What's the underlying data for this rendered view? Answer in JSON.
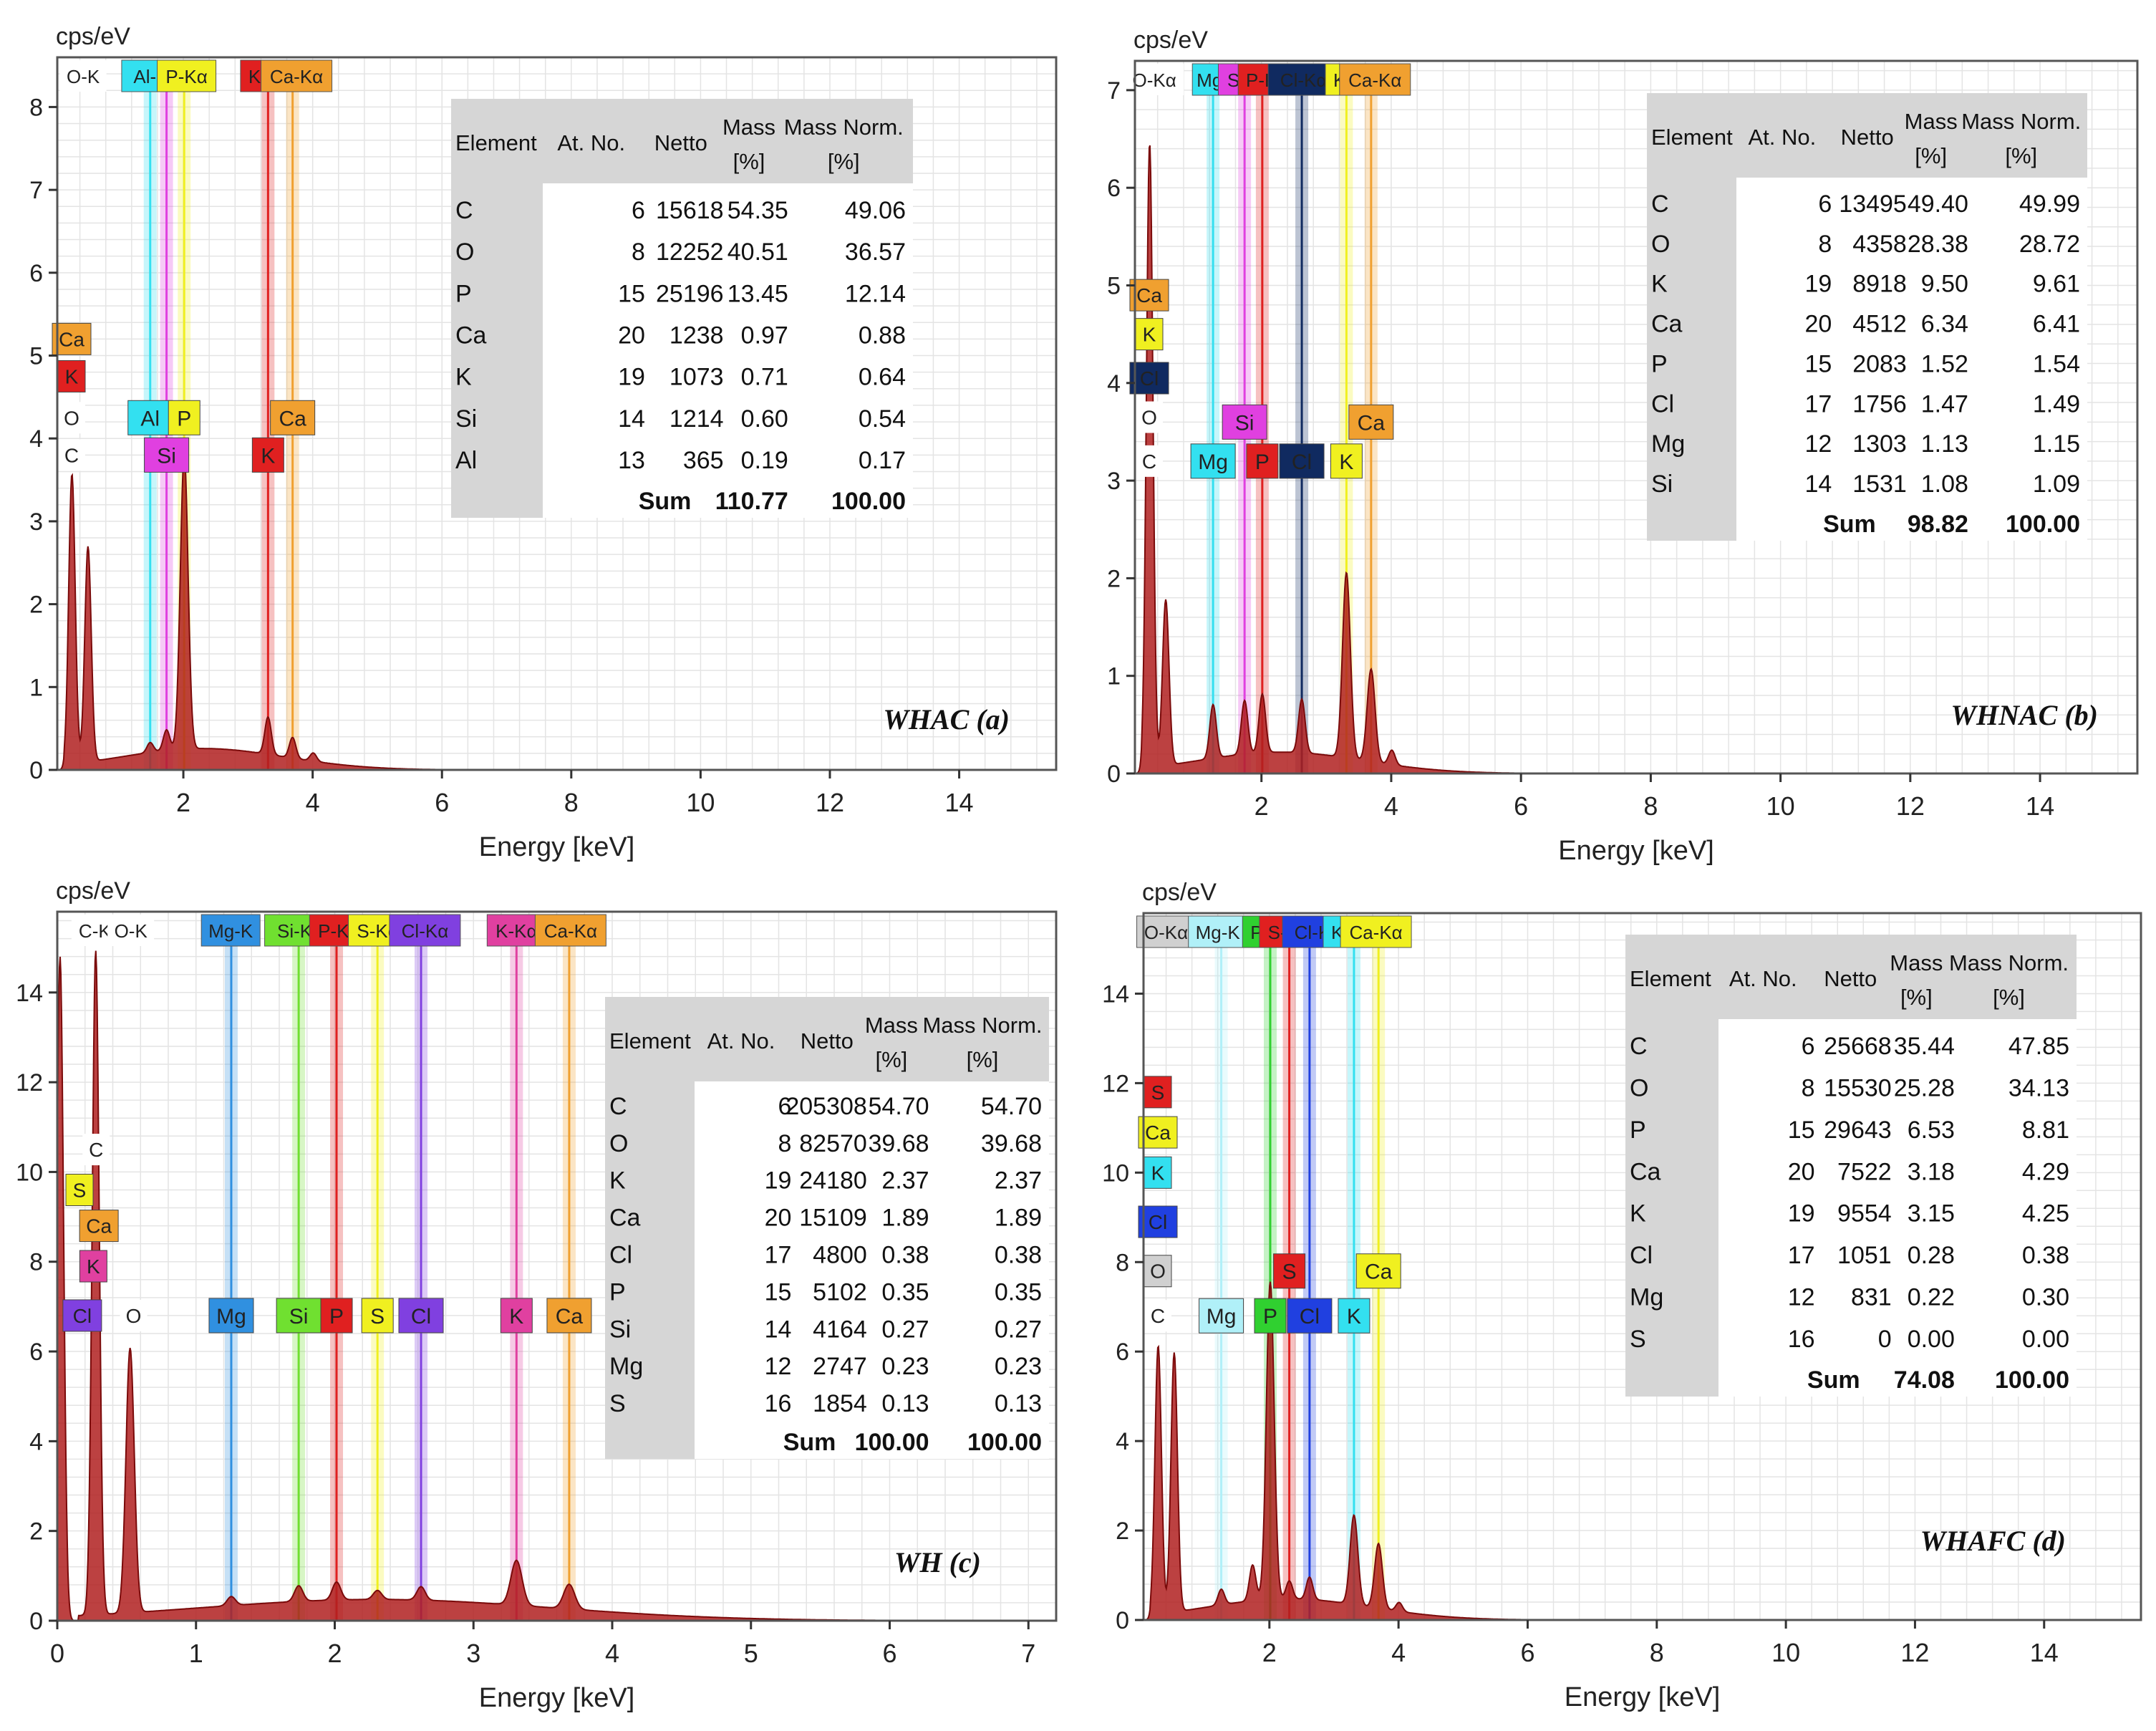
{
  "chart_data": [
    {
      "type": "line",
      "title": "WHAC (a)",
      "ylabel": "cps/eV",
      "xlabel": "Energy [keV]",
      "xlim": [
        0.05,
        15.5
      ],
      "ylim": [
        0,
        8.6
      ],
      "x_ticks": [
        2,
        4,
        6,
        8,
        10,
        12,
        14
      ],
      "y_ticks": [
        0,
        1,
        2,
        3,
        4,
        5,
        6,
        7,
        8
      ],
      "peaks": [
        {
          "x": 0.277,
          "h": 3.5,
          "w": 0.05
        },
        {
          "x": 0.525,
          "h": 2.6,
          "w": 0.05
        },
        {
          "x": 1.487,
          "h": 0.12,
          "w": 0.05
        },
        {
          "x": 1.74,
          "h": 0.25,
          "w": 0.05
        },
        {
          "x": 2.013,
          "h": 3.55,
          "w": 0.06
        },
        {
          "x": 3.31,
          "h": 0.45,
          "w": 0.05
        },
        {
          "x": 3.69,
          "h": 0.25,
          "w": 0.05
        },
        {
          "x": 4.01,
          "h": 0.1,
          "w": 0.05
        }
      ],
      "lines": [
        {
          "x": 1.487,
          "label": "Al",
          "color": "#33e0f0",
          "mark_y": 4.25
        },
        {
          "x": 1.74,
          "label": "Si",
          "color": "#e040e0",
          "mark_y": 3.8
        },
        {
          "x": 2.013,
          "label": "P",
          "color": "#f0f020",
          "mark_y": 4.25
        },
        {
          "x": 3.31,
          "label": "K",
          "color": "#e02020",
          "mark_y": 3.8
        },
        {
          "x": 3.69,
          "label": "Ca",
          "color": "#f0a030",
          "mark_y": 4.25
        }
      ],
      "side_labels": [
        {
          "label": "Ca",
          "y": 5.2,
          "color": "#f0a030"
        },
        {
          "label": "K",
          "y": 4.75,
          "color": "#e02020"
        },
        {
          "label": "O",
          "y": 4.25,
          "color": "#ffffff"
        },
        {
          "label": "C",
          "y": 3.8,
          "color": "#ffffff"
        }
      ],
      "top_labels": [
        {
          "x": 0.45,
          "label": "O-K",
          "color": "#ffffff"
        },
        {
          "x": 1.5,
          "label": "Al-K",
          "color": "#33e0f0"
        },
        {
          "x": 2.05,
          "label": "P-Kα",
          "color": "#f0f020"
        },
        {
          "x": 3.15,
          "label": "K-",
          "color": "#e02020"
        },
        {
          "x": 3.75,
          "label": "Ca-Kα",
          "color": "#f0a030"
        }
      ],
      "table": {
        "headers": [
          "Element",
          "At. No.",
          "Netto",
          "Mass [%]",
          "Mass Norm. [%]"
        ],
        "rows": [
          [
            "C",
            "6",
            "15618",
            "54.35",
            "49.06"
          ],
          [
            "O",
            "8",
            "12252",
            "40.51",
            "36.57"
          ],
          [
            "P",
            "15",
            "25196",
            "13.45",
            "12.14"
          ],
          [
            "Ca",
            "20",
            "1238",
            "0.97",
            "0.88"
          ],
          [
            "K",
            "19",
            "1073",
            "0.71",
            "0.64"
          ],
          [
            "Si",
            "14",
            "1214",
            "0.60",
            "0.54"
          ],
          [
            "Al",
            "13",
            "365",
            "0.19",
            "0.17"
          ]
        ],
        "sum_label": "Sum",
        "sum_mass": "110.77",
        "sum_norm": "100.00"
      }
    },
    {
      "type": "line",
      "title": "WHNAC (b)",
      "ylabel": "cps/eV",
      "xlabel": "Energy [keV]",
      "xlim": [
        0.05,
        15.5
      ],
      "ylim": [
        0,
        7.3
      ],
      "x_ticks": [
        2,
        4,
        6,
        8,
        10,
        12,
        14
      ],
      "y_ticks": [
        0,
        1,
        2,
        3,
        4,
        5,
        6,
        7
      ],
      "peaks": [
        {
          "x": 0.277,
          "h": 6.4,
          "w": 0.05
        },
        {
          "x": 0.525,
          "h": 1.7,
          "w": 0.05
        },
        {
          "x": 1.254,
          "h": 0.55,
          "w": 0.05
        },
        {
          "x": 1.74,
          "h": 0.55,
          "w": 0.05
        },
        {
          "x": 2.013,
          "h": 0.6,
          "w": 0.05
        },
        {
          "x": 2.622,
          "h": 0.55,
          "w": 0.05
        },
        {
          "x": 3.31,
          "h": 1.9,
          "w": 0.06
        },
        {
          "x": 3.69,
          "h": 0.95,
          "w": 0.06
        },
        {
          "x": 4.01,
          "h": 0.15,
          "w": 0.05
        }
      ],
      "lines": [
        {
          "x": 1.254,
          "label": "Mg",
          "color": "#33e0f0",
          "mark_y": 3.2
        },
        {
          "x": 1.74,
          "label": "Si",
          "color": "#e040e0",
          "mark_y": 3.6
        },
        {
          "x": 2.013,
          "label": "P",
          "color": "#e02020",
          "mark_y": 3.2
        },
        {
          "x": 2.622,
          "label": "Cl",
          "color": "#102a60",
          "mark_y": 3.2
        },
        {
          "x": 3.31,
          "label": "K",
          "color": "#f0f020",
          "mark_y": 3.2
        },
        {
          "x": 3.69,
          "label": "Ca",
          "color": "#f0a030",
          "mark_y": 3.6
        }
      ],
      "side_labels": [
        {
          "label": "Ca",
          "y": 4.9,
          "color": "#f0a030"
        },
        {
          "label": "K",
          "y": 4.5,
          "color": "#f0f020"
        },
        {
          "label": "Cl",
          "y": 4.05,
          "color": "#102a60"
        },
        {
          "label": "O",
          "y": 3.65,
          "color": "#ffffff"
        },
        {
          "label": "C",
          "y": 3.2,
          "color": "#ffffff"
        }
      ],
      "top_labels": [
        {
          "x": 0.35,
          "label": "O-Kα",
          "color": "#ffffff"
        },
        {
          "x": 1.2,
          "label": "Mg",
          "color": "#33e0f0"
        },
        {
          "x": 1.6,
          "label": "Si",
          "color": "#e040e0"
        },
        {
          "x": 2.0,
          "label": "P-K",
          "color": "#e02020"
        },
        {
          "x": 2.65,
          "label": "Cl-Kα",
          "color": "#102a60"
        },
        {
          "x": 3.25,
          "label": "K-",
          "color": "#f0f020"
        },
        {
          "x": 3.75,
          "label": "Ca-Kα",
          "color": "#f0a030"
        }
      ],
      "table": {
        "headers": [
          "Element",
          "At. No.",
          "Netto",
          "Mass [%]",
          "Mass Norm. [%]"
        ],
        "rows": [
          [
            "C",
            "6",
            "13495",
            "49.40",
            "49.99"
          ],
          [
            "O",
            "8",
            "4358",
            "28.38",
            "28.72"
          ],
          [
            "K",
            "19",
            "8918",
            "9.50",
            "9.61"
          ],
          [
            "Ca",
            "20",
            "4512",
            "6.34",
            "6.41"
          ],
          [
            "P",
            "15",
            "2083",
            "1.52",
            "1.54"
          ],
          [
            "Cl",
            "17",
            "1756",
            "1.47",
            "1.49"
          ],
          [
            "Mg",
            "12",
            "1303",
            "1.13",
            "1.15"
          ],
          [
            "Si",
            "14",
            "1531",
            "1.08",
            "1.09"
          ]
        ],
        "sum_label": "Sum",
        "sum_mass": "98.82",
        "sum_norm": "100.00"
      }
    },
    {
      "type": "line",
      "title": "WH (c)",
      "ylabel": "cps/eV",
      "xlabel": "Energy [keV]",
      "xlim": [
        0,
        7.2
      ],
      "ylim": [
        0,
        15.8
      ],
      "x_ticks": [
        0,
        1,
        2,
        3,
        4,
        5,
        6,
        7
      ],
      "y_ticks": [
        0,
        2,
        4,
        6,
        8,
        10,
        12,
        14
      ],
      "peaks": [
        {
          "x": 0.02,
          "h": 14.8,
          "w": 0.025
        },
        {
          "x": 0.277,
          "h": 14.8,
          "w": 0.025
        },
        {
          "x": 0.525,
          "h": 5.9,
          "w": 0.03
        },
        {
          "x": 1.254,
          "h": 0.2,
          "w": 0.03
        },
        {
          "x": 1.74,
          "h": 0.35,
          "w": 0.03
        },
        {
          "x": 2.013,
          "h": 0.4,
          "w": 0.03
        },
        {
          "x": 2.308,
          "h": 0.2,
          "w": 0.03
        },
        {
          "x": 2.622,
          "h": 0.3,
          "w": 0.03
        },
        {
          "x": 3.31,
          "h": 1.0,
          "w": 0.04
        },
        {
          "x": 3.69,
          "h": 0.55,
          "w": 0.04
        }
      ],
      "lines": [
        {
          "x": 1.254,
          "label": "Mg",
          "color": "#3090e0",
          "mark_y": 6.8
        },
        {
          "x": 1.74,
          "label": "Si",
          "color": "#70e030",
          "mark_y": 6.8
        },
        {
          "x": 2.013,
          "label": "P",
          "color": "#e02020",
          "mark_y": 6.8
        },
        {
          "x": 2.308,
          "label": "S",
          "color": "#f0f020",
          "mark_y": 6.8
        },
        {
          "x": 2.622,
          "label": "Cl",
          "color": "#8040e0",
          "mark_y": 6.8
        },
        {
          "x": 3.31,
          "label": "K",
          "color": "#e040a0",
          "mark_y": 6.8
        },
        {
          "x": 3.69,
          "label": "Ca",
          "color": "#f0a030",
          "mark_y": 6.8
        }
      ],
      "side_labels": [
        {
          "label": "C",
          "y": 10.5,
          "color": "#ffffff",
          "x": 0.28
        },
        {
          "label": "S",
          "y": 9.6,
          "color": "#f0f020",
          "x": 0.16
        },
        {
          "label": "Ca",
          "y": 8.8,
          "color": "#f0a030",
          "x": 0.3
        },
        {
          "label": "K",
          "y": 7.9,
          "color": "#e040a0",
          "x": 0.26
        },
        {
          "label": "Cl",
          "y": 6.8,
          "color": "#8040e0",
          "x": 0.18
        },
        {
          "label": "O",
          "y": 6.8,
          "color": "#ffffff",
          "x": 0.55
        }
      ],
      "top_labels": [
        {
          "x": 0.27,
          "label": "C-K",
          "color": "#ffffff"
        },
        {
          "x": 0.53,
          "label": "O-K",
          "color": "#ffffff"
        },
        {
          "x": 1.25,
          "label": "Mg-K",
          "color": "#3090e0"
        },
        {
          "x": 1.75,
          "label": "Si-Kα",
          "color": "#70e030"
        },
        {
          "x": 2.03,
          "label": "P-Kα",
          "color": "#e02020"
        },
        {
          "x": 2.31,
          "label": "S-Kα",
          "color": "#f0f020"
        },
        {
          "x": 2.65,
          "label": "Cl-Kα",
          "color": "#8040e0"
        },
        {
          "x": 3.31,
          "label": "K-Kα",
          "color": "#e040a0"
        },
        {
          "x": 3.7,
          "label": "Ca-Kα",
          "color": "#f0a030"
        }
      ],
      "table": {
        "headers": [
          "Element",
          "At. No.",
          "Netto",
          "Mass [%]",
          "Mass Norm. [%]"
        ],
        "rows": [
          [
            "C",
            "6",
            "205308",
            "54.70",
            "54.70"
          ],
          [
            "O",
            "8",
            "82570",
            "39.68",
            "39.68"
          ],
          [
            "K",
            "19",
            "24180",
            "2.37",
            "2.37"
          ],
          [
            "Ca",
            "20",
            "15109",
            "1.89",
            "1.89"
          ],
          [
            "Cl",
            "17",
            "4800",
            "0.38",
            "0.38"
          ],
          [
            "P",
            "15",
            "5102",
            "0.35",
            "0.35"
          ],
          [
            "Si",
            "14",
            "4164",
            "0.27",
            "0.27"
          ],
          [
            "Mg",
            "12",
            "2747",
            "0.23",
            "0.23"
          ],
          [
            "S",
            "16",
            "1854",
            "0.13",
            "0.13"
          ]
        ],
        "sum_label": "Sum",
        "sum_mass": "100.00",
        "sum_norm": "100.00"
      }
    },
    {
      "type": "line",
      "title": "WHAFC (d)",
      "ylabel": "cps/eV",
      "xlabel": "Energy [keV]",
      "xlim": [
        0.05,
        15.5
      ],
      "ylim": [
        0,
        15.8
      ],
      "x_ticks": [
        2,
        4,
        6,
        8,
        10,
        12,
        14
      ],
      "y_ticks": [
        0,
        2,
        4,
        6,
        8,
        10,
        12,
        14
      ],
      "peaks": [
        {
          "x": 0.277,
          "h": 6.0,
          "w": 0.05
        },
        {
          "x": 0.525,
          "h": 5.8,
          "w": 0.05
        },
        {
          "x": 1.254,
          "h": 0.35,
          "w": 0.05
        },
        {
          "x": 1.74,
          "h": 0.8,
          "w": 0.05
        },
        {
          "x": 2.013,
          "h": 7.1,
          "w": 0.06
        },
        {
          "x": 2.308,
          "h": 0.4,
          "w": 0.05
        },
        {
          "x": 2.622,
          "h": 0.5,
          "w": 0.05
        },
        {
          "x": 3.31,
          "h": 2.0,
          "w": 0.06
        },
        {
          "x": 3.69,
          "h": 1.45,
          "w": 0.06
        },
        {
          "x": 4.01,
          "h": 0.2,
          "w": 0.05
        }
      ],
      "lines": [
        {
          "x": 1.254,
          "label": "Mg",
          "color": "#b0f0f8",
          "mark_y": 6.8
        },
        {
          "x": 2.013,
          "label": "P",
          "color": "#30d030",
          "mark_y": 6.8
        },
        {
          "x": 2.308,
          "label": "S",
          "color": "#e02020",
          "mark_y": 7.8
        },
        {
          "x": 2.622,
          "label": "Cl",
          "color": "#2040e0",
          "mark_y": 6.8
        },
        {
          "x": 3.31,
          "label": "K",
          "color": "#33e0f0",
          "mark_y": 6.8
        },
        {
          "x": 3.69,
          "label": "Ca",
          "color": "#f0f020",
          "mark_y": 7.8
        }
      ],
      "side_labels": [
        {
          "label": "S",
          "y": 11.8,
          "color": "#e02020"
        },
        {
          "label": "Ca",
          "y": 10.9,
          "color": "#f0f020"
        },
        {
          "label": "K",
          "y": 10.0,
          "color": "#33e0f0"
        },
        {
          "label": "Cl",
          "y": 8.9,
          "color": "#2040e0"
        },
        {
          "label": "O",
          "y": 7.8,
          "color": "#d0d0d0"
        },
        {
          "label": "C",
          "y": 6.8,
          "color": "#ffffff"
        }
      ],
      "top_labels": [
        {
          "x": 0.4,
          "label": "O-Kα",
          "color": "#d0d0d0"
        },
        {
          "x": 1.2,
          "label": "Mg-K",
          "color": "#b0f0f8"
        },
        {
          "x": 1.85,
          "label": "P-",
          "color": "#30d030"
        },
        {
          "x": 2.3,
          "label": "S-Kα",
          "color": "#e02020"
        },
        {
          "x": 2.75,
          "label": "Cl-Kα",
          "color": "#2040e0"
        },
        {
          "x": 3.1,
          "label": "K-",
          "color": "#33e0f0"
        },
        {
          "x": 3.65,
          "label": "Ca-Kα",
          "color": "#f0f020"
        }
      ],
      "table": {
        "headers": [
          "Element",
          "At. No.",
          "Netto",
          "Mass [%]",
          "Mass Norm. [%]"
        ],
        "rows": [
          [
            "C",
            "6",
            "25668",
            "35.44",
            "47.85"
          ],
          [
            "O",
            "8",
            "15530",
            "25.28",
            "34.13"
          ],
          [
            "P",
            "15",
            "29643",
            "6.53",
            "8.81"
          ],
          [
            "Ca",
            "20",
            "7522",
            "3.18",
            "4.29"
          ],
          [
            "K",
            "19",
            "9554",
            "3.15",
            "4.25"
          ],
          [
            "Cl",
            "17",
            "1051",
            "0.28",
            "0.38"
          ],
          [
            "Mg",
            "12",
            "831",
            "0.22",
            "0.30"
          ],
          [
            "S",
            "16",
            "0",
            "0.00",
            "0.00"
          ]
        ],
        "sum_label": "Sum",
        "sum_mass": "74.08",
        "sum_norm": "100.00"
      }
    }
  ]
}
